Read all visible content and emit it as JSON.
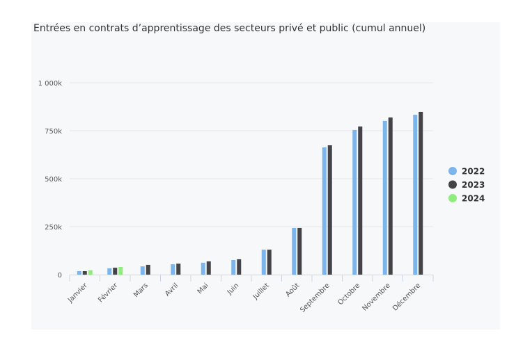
{
  "chart_data": {
    "type": "bar",
    "title": "Entrées en contrats d’apprentissage des secteurs privé et public (cumul annuel)",
    "xlabel": "",
    "ylabel": "",
    "ylim": [
      0,
      1000000
    ],
    "yticks": [
      0,
      250000,
      500000,
      750000,
      1000000
    ],
    "ytick_labels": [
      "0",
      "250k",
      "500k",
      "750k",
      "1 000k"
    ],
    "grid": true,
    "legend_position": "right",
    "categories": [
      "Janvier",
      "Février",
      "Mars",
      "Avril",
      "Mai",
      "Juin",
      "Juillet",
      "Août",
      "Septembre",
      "Octobre",
      "Novembre",
      "Décembre"
    ],
    "series": [
      {
        "name": "2022",
        "color": "#7cb5ec",
        "values": [
          18000,
          33000,
          43000,
          54000,
          62000,
          76000,
          130000,
          243000,
          663000,
          754000,
          801000,
          833000
        ]
      },
      {
        "name": "2023",
        "color": "#434348",
        "values": [
          18000,
          36000,
          51000,
          57000,
          69000,
          80000,
          130000,
          243000,
          674000,
          772000,
          819000,
          848000
        ]
      },
      {
        "name": "2024",
        "color": "#90ed7d",
        "values": [
          23000,
          40000,
          null,
          null,
          null,
          null,
          null,
          null,
          null,
          null,
          null,
          null
        ]
      }
    ]
  }
}
